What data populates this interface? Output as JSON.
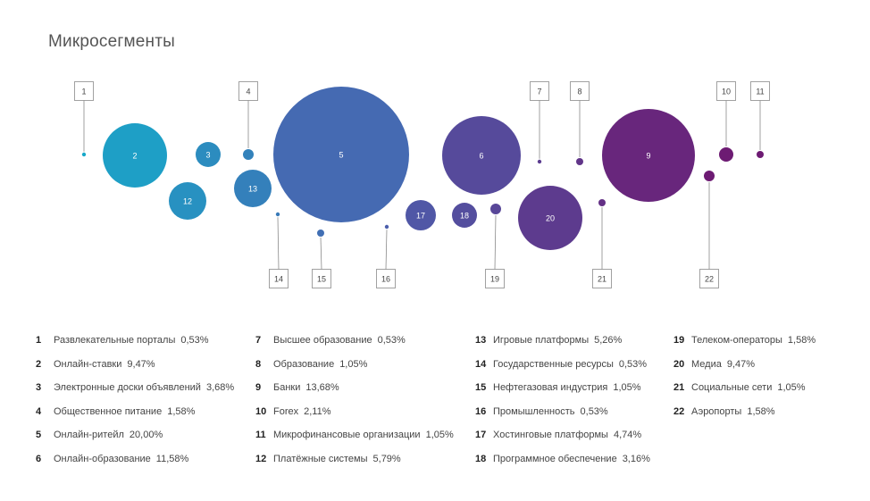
{
  "chart_data": {
    "type": "bubble",
    "title": "Микросегменты",
    "legend_placement": "bottom",
    "colors": {
      "start": "#17a8c9",
      "mid": "#4a63b0",
      "end": "#6d1b73"
    },
    "items": [
      {
        "id": "1",
        "label": "Развлекательные порталы",
        "value": 0.53,
        "value_text": "0,53%"
      },
      {
        "id": "2",
        "label": "Онлайн-ставки",
        "value": 9.47,
        "value_text": "9,47%"
      },
      {
        "id": "3",
        "label": "Электронные доски объявлений",
        "value": 3.68,
        "value_text": "3,68%"
      },
      {
        "id": "4",
        "label": "Общественное питание",
        "value": 1.58,
        "value_text": "1,58%"
      },
      {
        "id": "5",
        "label": "Онлайн-ритейл",
        "value": 20.0,
        "value_text": "20,00%"
      },
      {
        "id": "6",
        "label": "Онлайн-образование",
        "value": 11.58,
        "value_text": "11,58%"
      },
      {
        "id": "7",
        "label": "Высшее образование",
        "value": 0.53,
        "value_text": "0,53%"
      },
      {
        "id": "8",
        "label": "Образование",
        "value": 1.05,
        "value_text": "1,05%"
      },
      {
        "id": "9",
        "label": "Банки",
        "value": 13.68,
        "value_text": "13,68%"
      },
      {
        "id": "10",
        "label": "Forex",
        "value": 2.11,
        "value_text": "2,11%"
      },
      {
        "id": "11",
        "label": "Микрофинансовые организации",
        "value": 1.05,
        "value_text": "1,05%"
      },
      {
        "id": "12",
        "label": "Платёжные системы",
        "value": 5.79,
        "value_text": "5,79%"
      },
      {
        "id": "13",
        "label": "Игровые платформы",
        "value": 5.26,
        "value_text": "5,26%"
      },
      {
        "id": "14",
        "label": "Государственные ресурсы",
        "value": 0.53,
        "value_text": "0,53%"
      },
      {
        "id": "15",
        "label": "Нефтегазовая индустрия",
        "value": 1.05,
        "value_text": "1,05%"
      },
      {
        "id": "16",
        "label": "Промышленность",
        "value": 0.53,
        "value_text": "0,53%"
      },
      {
        "id": "17",
        "label": "Хостинговые платформы",
        "value": 4.74,
        "value_text": "4,74%"
      },
      {
        "id": "18",
        "label": "Программное обеспечение",
        "value": 3.16,
        "value_text": "3,16%"
      },
      {
        "id": "19",
        "label": "Телеком-операторы",
        "value": 1.58,
        "value_text": "1,58%"
      },
      {
        "id": "20",
        "label": "Медиа",
        "value": 9.47,
        "value_text": "9,47%"
      },
      {
        "id": "21",
        "label": "Социальные сети",
        "value": 1.05,
        "value_text": "1,05%"
      },
      {
        "id": "22",
        "label": "Аэропорты",
        "value": 1.58,
        "value_text": "1,58%"
      }
    ]
  }
}
